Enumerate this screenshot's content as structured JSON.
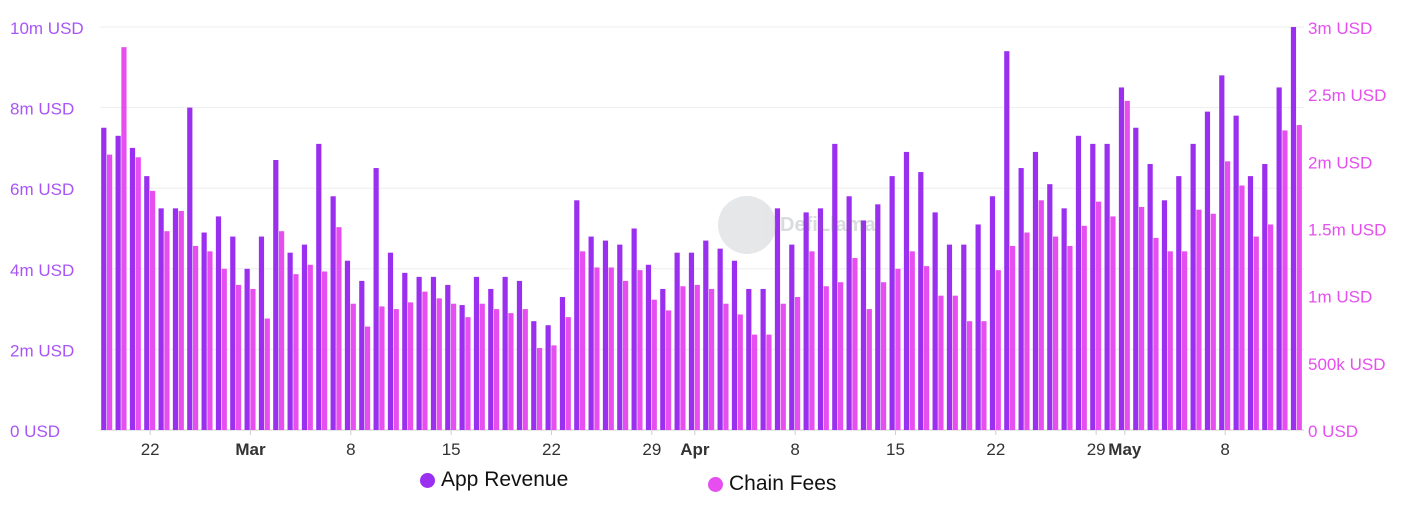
{
  "chart_data": {
    "type": "bar",
    "watermark": "DefiLlama",
    "y_left": {
      "ticks": [
        "0 USD",
        "2m USD",
        "4m USD",
        "6m USD",
        "8m USD",
        "10m USD"
      ],
      "min": 0,
      "max": 10000000
    },
    "y_right": {
      "ticks": [
        "0 USD",
        "500k USD",
        "1m USD",
        "1.5m USD",
        "2m USD",
        "2.5m USD",
        "3m USD"
      ],
      "min": 0,
      "max": 3000000
    },
    "x_ticks": [
      {
        "label": "22",
        "index": 3,
        "bold": false
      },
      {
        "label": "Mar",
        "index": 10,
        "bold": true
      },
      {
        "label": "8",
        "index": 17,
        "bold": false
      },
      {
        "label": "15",
        "index": 24,
        "bold": false
      },
      {
        "label": "22",
        "index": 31,
        "bold": false
      },
      {
        "label": "29",
        "index": 38,
        "bold": false
      },
      {
        "label": "Apr",
        "index": 41,
        "bold": true
      },
      {
        "label": "8",
        "index": 48,
        "bold": false
      },
      {
        "label": "15",
        "index": 55,
        "bold": false
      },
      {
        "label": "22",
        "index": 62,
        "bold": false
      },
      {
        "label": "29",
        "index": 69,
        "bold": false
      },
      {
        "label": "May",
        "index": 71,
        "bold": true
      },
      {
        "label": "8",
        "index": 78,
        "bold": false
      }
    ],
    "series": [
      {
        "name": "App Revenue",
        "axis": "left",
        "color": "#9b2ff0",
        "values": [
          7.5,
          7.3,
          7.0,
          6.3,
          5.5,
          5.5,
          8.0,
          4.9,
          5.3,
          4.8,
          4.0,
          4.8,
          6.7,
          4.4,
          4.6,
          7.1,
          5.8,
          4.2,
          3.7,
          6.5,
          4.4,
          3.9,
          3.8,
          3.8,
          3.6,
          3.1,
          3.8,
          3.5,
          3.8,
          3.7,
          2.7,
          2.6,
          3.3,
          5.7,
          4.8,
          4.7,
          4.6,
          5.0,
          4.1,
          3.5,
          4.4,
          4.4,
          4.7,
          4.5,
          4.2,
          3.5,
          3.5,
          5.5,
          4.6,
          5.4,
          5.5,
          7.1,
          5.8,
          5.2,
          5.6,
          6.3,
          6.9,
          6.4,
          5.4,
          4.6,
          4.6,
          5.1,
          5.8,
          9.4,
          6.5,
          6.9,
          6.1,
          5.5,
          7.3,
          7.1,
          7.1,
          8.5,
          7.5,
          6.6,
          5.7,
          6.3,
          7.1,
          7.9,
          8.8,
          7.8,
          6.3,
          6.6,
          8.5,
          10.0
        ]
      },
      {
        "name": "Chain Fees",
        "axis": "right",
        "color": "#e64ef0",
        "values": [
          2.05,
          2.85,
          2.03,
          1.78,
          1.48,
          1.63,
          1.37,
          1.33,
          1.2,
          1.08,
          1.05,
          0.83,
          1.48,
          1.16,
          1.23,
          1.18,
          1.51,
          0.94,
          0.77,
          0.92,
          0.9,
          0.95,
          1.03,
          0.98,
          0.94,
          0.84,
          0.94,
          0.9,
          0.87,
          0.9,
          0.61,
          0.63,
          0.84,
          1.33,
          1.21,
          1.21,
          1.11,
          1.19,
          0.97,
          0.89,
          1.07,
          1.08,
          1.05,
          0.94,
          0.86,
          0.71,
          0.71,
          0.94,
          0.99,
          1.33,
          1.07,
          1.1,
          1.28,
          0.9,
          1.1,
          1.2,
          1.33,
          1.22,
          1.0,
          1.0,
          0.81,
          0.81,
          1.19,
          1.37,
          1.47,
          1.71,
          1.44,
          1.37,
          1.52,
          1.7,
          1.59,
          2.45,
          1.66,
          1.43,
          1.33,
          1.33,
          1.64,
          1.61,
          2.0,
          1.82,
          1.44,
          1.53,
          2.23,
          2.27
        ]
      }
    ]
  },
  "legend": {
    "app_revenue": "App Revenue",
    "chain_fees": "Chain Fees"
  },
  "watermark_text": "DefiLlama"
}
